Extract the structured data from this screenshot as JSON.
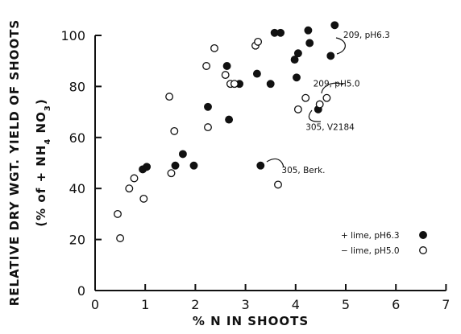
{
  "chart_data": {
    "type": "scatter",
    "xlabel": "% N IN SHOOTS",
    "ylabel": {
      "line1": "RELATIVE DRY WGT. YIELD OF SHOOTS",
      "line2_prefix": "(% of + NH",
      "line2_sub1": "4",
      "line2_mid": " NO",
      "line2_sub2": "3",
      "line2_suffix": ")"
    },
    "xlim": [
      0,
      7
    ],
    "ylim": [
      0,
      100
    ],
    "xticks": [
      0,
      1,
      2,
      3,
      4,
      5,
      6,
      7
    ],
    "yticks": [
      0,
      20,
      40,
      60,
      80,
      100
    ],
    "legend_position": "bottom-right",
    "series": [
      {
        "name": "+ lime, pH6.3",
        "marker": "filled",
        "color": "#111111",
        "points": [
          [
            0.95,
            47.5
          ],
          [
            1.03,
            48.5
          ],
          [
            1.6,
            49
          ],
          [
            1.75,
            53.5
          ],
          [
            1.97,
            49
          ],
          [
            2.25,
            72
          ],
          [
            2.63,
            88
          ],
          [
            2.67,
            67
          ],
          [
            2.88,
            81
          ],
          [
            3.23,
            85
          ],
          [
            3.3,
            49
          ],
          [
            3.5,
            81
          ],
          [
            3.58,
            101
          ],
          [
            3.7,
            101
          ],
          [
            3.98,
            90.5
          ],
          [
            4.02,
            83.5
          ],
          [
            4.05,
            93
          ],
          [
            4.25,
            102
          ],
          [
            4.28,
            97
          ],
          [
            4.45,
            71
          ],
          [
            4.7,
            92
          ],
          [
            4.78,
            104
          ]
        ]
      },
      {
        "name": "− lime, pH5.0",
        "marker": "open",
        "color": "#111111",
        "points": [
          [
            0.45,
            30
          ],
          [
            0.5,
            20.5
          ],
          [
            0.68,
            40
          ],
          [
            0.78,
            44
          ],
          [
            0.97,
            36
          ],
          [
            1.48,
            76
          ],
          [
            1.52,
            46
          ],
          [
            1.58,
            62.5
          ],
          [
            2.22,
            88
          ],
          [
            2.25,
            64
          ],
          [
            2.38,
            95
          ],
          [
            2.6,
            84.5
          ],
          [
            2.7,
            81
          ],
          [
            2.78,
            81
          ],
          [
            3.2,
            96
          ],
          [
            3.25,
            97.5
          ],
          [
            3.65,
            41.5
          ],
          [
            4.05,
            71
          ],
          [
            4.2,
            75.5
          ],
          [
            4.48,
            73
          ],
          [
            4.62,
            75.5
          ]
        ]
      }
    ],
    "annotations": [
      {
        "text": "209, pH6.3",
        "x": 4.95,
        "y": 99
      },
      {
        "text": "209, pH5.0",
        "x": 4.35,
        "y": 80
      },
      {
        "text": "305, V2184",
        "x": 4.2,
        "y": 63
      },
      {
        "text": "305, Berk.",
        "x": 3.72,
        "y": 46
      }
    ]
  }
}
